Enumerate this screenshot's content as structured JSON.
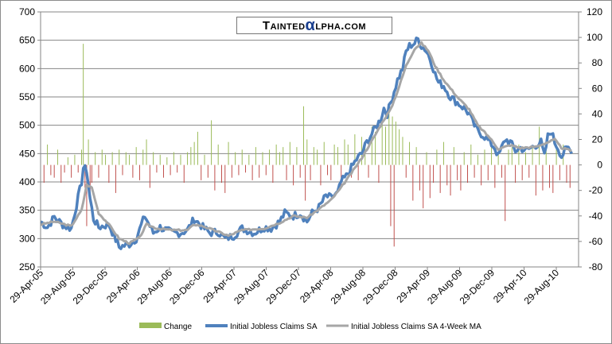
{
  "logo": {
    "before": "Tainted",
    "alpha": "α",
    "after": "lpha.com"
  },
  "chart_data": {
    "type": "line",
    "title": "",
    "xlabel": "",
    "ylabel": "",
    "ylim": [
      250,
      700
    ],
    "ylim_right": [
      -80,
      120
    ],
    "left_ticks": [
      "700",
      "650",
      "600",
      "550",
      "500",
      "450",
      "400",
      "350",
      "300",
      "250"
    ],
    "right_ticks": [
      "120",
      "100",
      "80",
      "60",
      "40",
      "20",
      "0",
      "-20",
      "-40",
      "-60",
      "-80"
    ],
    "x_tick_labels": [
      "29-Apr-05",
      "29-Aug-05",
      "29-Dec-05",
      "29-Apr-06",
      "29-Aug-06",
      "29-Dec-06",
      "29-Apr-07",
      "29-Aug-07",
      "29-Dec-07",
      "29-Apr-08",
      "29-Aug-08",
      "29-Dec-08",
      "29-Apr-09",
      "29-Aug-09",
      "29-Dec-09",
      "29-Apr-10",
      "29-Aug-10"
    ],
    "grid": "horizontal",
    "legend_position": "bottom",
    "legend": [
      "Change",
      "Initial Jobless Claims SA",
      "Initial Jobless Claims SA 4-Week MA"
    ],
    "colors": {
      "change_pos": "#9bbb59",
      "change_neg": "#c0504d",
      "claims": "#4f81bd",
      "ma": "#a6a6a6",
      "grid": "#868686"
    },
    "claims_keypoints": [
      {
        "x": 0,
        "y": 330
      },
      {
        "x": 4,
        "y": 320
      },
      {
        "x": 8,
        "y": 338
      },
      {
        "x": 14,
        "y": 322
      },
      {
        "x": 18,
        "y": 318
      },
      {
        "x": 24,
        "y": 400
      },
      {
        "x": 25,
        "y": 425
      },
      {
        "x": 27,
        "y": 420
      },
      {
        "x": 29,
        "y": 370
      },
      {
        "x": 31,
        "y": 335
      },
      {
        "x": 34,
        "y": 320
      },
      {
        "x": 40,
        "y": 325
      },
      {
        "x": 43,
        "y": 305
      },
      {
        "x": 46,
        "y": 285
      },
      {
        "x": 52,
        "y": 290
      },
      {
        "x": 56,
        "y": 300
      },
      {
        "x": 61,
        "y": 340
      },
      {
        "x": 66,
        "y": 310
      },
      {
        "x": 70,
        "y": 320
      },
      {
        "x": 77,
        "y": 310
      },
      {
        "x": 82,
        "y": 310
      },
      {
        "x": 86,
        "y": 315
      },
      {
        "x": 90,
        "y": 335
      },
      {
        "x": 95,
        "y": 320
      },
      {
        "x": 99,
        "y": 310
      },
      {
        "x": 104,
        "y": 312
      },
      {
        "x": 108,
        "y": 300
      },
      {
        "x": 113,
        "y": 305
      },
      {
        "x": 118,
        "y": 318
      },
      {
        "x": 125,
        "y": 310
      },
      {
        "x": 131,
        "y": 320
      },
      {
        "x": 135,
        "y": 318
      },
      {
        "x": 140,
        "y": 330
      },
      {
        "x": 143,
        "y": 345
      },
      {
        "x": 148,
        "y": 340
      },
      {
        "x": 152,
        "y": 345
      },
      {
        "x": 156,
        "y": 330
      },
      {
        "x": 159,
        "y": 345
      },
      {
        "x": 163,
        "y": 355
      },
      {
        "x": 167,
        "y": 375
      },
      {
        "x": 170,
        "y": 372
      },
      {
        "x": 174,
        "y": 380
      },
      {
        "x": 176,
        "y": 400
      },
      {
        "x": 179,
        "y": 410
      },
      {
        "x": 183,
        "y": 430
      },
      {
        "x": 185,
        "y": 440
      },
      {
        "x": 188,
        "y": 450
      },
      {
        "x": 191,
        "y": 470
      },
      {
        "x": 195,
        "y": 490
      },
      {
        "x": 199,
        "y": 510
      },
      {
        "x": 201,
        "y": 530
      },
      {
        "x": 203,
        "y": 520
      },
      {
        "x": 205,
        "y": 540
      },
      {
        "x": 207,
        "y": 560
      },
      {
        "x": 209,
        "y": 580
      },
      {
        "x": 212,
        "y": 600
      },
      {
        "x": 214,
        "y": 630
      },
      {
        "x": 216,
        "y": 640
      },
      {
        "x": 219,
        "y": 645
      },
      {
        "x": 221,
        "y": 652
      },
      {
        "x": 223,
        "y": 640
      },
      {
        "x": 225,
        "y": 635
      },
      {
        "x": 227,
        "y": 625
      },
      {
        "x": 229,
        "y": 610
      },
      {
        "x": 231,
        "y": 590
      },
      {
        "x": 233,
        "y": 575
      },
      {
        "x": 236,
        "y": 570
      },
      {
        "x": 240,
        "y": 550
      },
      {
        "x": 244,
        "y": 540
      },
      {
        "x": 248,
        "y": 530
      },
      {
        "x": 251,
        "y": 520
      },
      {
        "x": 253,
        "y": 505
      },
      {
        "x": 256,
        "y": 490
      },
      {
        "x": 260,
        "y": 480
      },
      {
        "x": 263,
        "y": 470
      },
      {
        "x": 266,
        "y": 460
      },
      {
        "x": 268,
        "y": 445
      },
      {
        "x": 270,
        "y": 460
      },
      {
        "x": 272,
        "y": 475
      },
      {
        "x": 275,
        "y": 470
      },
      {
        "x": 278,
        "y": 455
      },
      {
        "x": 281,
        "y": 460
      },
      {
        "x": 284,
        "y": 455
      },
      {
        "x": 287,
        "y": 460
      },
      {
        "x": 290,
        "y": 465
      },
      {
        "x": 293,
        "y": 470
      },
      {
        "x": 295,
        "y": 445
      },
      {
        "x": 297,
        "y": 480
      },
      {
        "x": 299,
        "y": 490
      },
      {
        "x": 301,
        "y": 470
      },
      {
        "x": 303,
        "y": 460
      },
      {
        "x": 305,
        "y": 445
      },
      {
        "x": 307,
        "y": 455
      },
      {
        "x": 309,
        "y": 460
      },
      {
        "x": 311,
        "y": 450
      }
    ],
    "ma_keypoints": [
      {
        "x": 0,
        "y": 325
      },
      {
        "x": 8,
        "y": 330
      },
      {
        "x": 18,
        "y": 322
      },
      {
        "x": 24,
        "y": 350
      },
      {
        "x": 27,
        "y": 395
      },
      {
        "x": 30,
        "y": 390
      },
      {
        "x": 34,
        "y": 345
      },
      {
        "x": 40,
        "y": 325
      },
      {
        "x": 46,
        "y": 300
      },
      {
        "x": 52,
        "y": 292
      },
      {
        "x": 58,
        "y": 302
      },
      {
        "x": 62,
        "y": 325
      },
      {
        "x": 68,
        "y": 318
      },
      {
        "x": 77,
        "y": 315
      },
      {
        "x": 86,
        "y": 315
      },
      {
        "x": 90,
        "y": 325
      },
      {
        "x": 95,
        "y": 322
      },
      {
        "x": 104,
        "y": 312
      },
      {
        "x": 110,
        "y": 305
      },
      {
        "x": 118,
        "y": 315
      },
      {
        "x": 131,
        "y": 318
      },
      {
        "x": 140,
        "y": 328
      },
      {
        "x": 148,
        "y": 340
      },
      {
        "x": 156,
        "y": 337
      },
      {
        "x": 163,
        "y": 352
      },
      {
        "x": 170,
        "y": 368
      },
      {
        "x": 176,
        "y": 390
      },
      {
        "x": 183,
        "y": 420
      },
      {
        "x": 188,
        "y": 442
      },
      {
        "x": 195,
        "y": 478
      },
      {
        "x": 201,
        "y": 510
      },
      {
        "x": 205,
        "y": 528
      },
      {
        "x": 209,
        "y": 560
      },
      {
        "x": 214,
        "y": 605
      },
      {
        "x": 219,
        "y": 635
      },
      {
        "x": 223,
        "y": 645
      },
      {
        "x": 227,
        "y": 632
      },
      {
        "x": 231,
        "y": 605
      },
      {
        "x": 236,
        "y": 580
      },
      {
        "x": 244,
        "y": 550
      },
      {
        "x": 251,
        "y": 528
      },
      {
        "x": 256,
        "y": 500
      },
      {
        "x": 263,
        "y": 478
      },
      {
        "x": 268,
        "y": 458
      },
      {
        "x": 275,
        "y": 465
      },
      {
        "x": 281,
        "y": 460
      },
      {
        "x": 290,
        "y": 462
      },
      {
        "x": 297,
        "y": 470
      },
      {
        "x": 301,
        "y": 475
      },
      {
        "x": 305,
        "y": 460
      },
      {
        "x": 311,
        "y": 455
      }
    ],
    "change_bars": [
      {
        "x": 0,
        "y": -12
      },
      {
        "x": 2,
        "y": -14
      },
      {
        "x": 4,
        "y": 16
      },
      {
        "x": 6,
        "y": -8
      },
      {
        "x": 8,
        "y": -10
      },
      {
        "x": 10,
        "y": 12
      },
      {
        "x": 12,
        "y": -14
      },
      {
        "x": 14,
        "y": -6
      },
      {
        "x": 16,
        "y": 6
      },
      {
        "x": 18,
        "y": -10
      },
      {
        "x": 20,
        "y": 8
      },
      {
        "x": 22,
        "y": -6
      },
      {
        "x": 24,
        "y": 12
      },
      {
        "x": 25,
        "y": 95
      },
      {
        "x": 26,
        "y": -18
      },
      {
        "x": 27,
        "y": -48
      },
      {
        "x": 28,
        "y": 20
      },
      {
        "x": 29,
        "y": -28
      },
      {
        "x": 30,
        "y": -14
      },
      {
        "x": 32,
        "y": 10
      },
      {
        "x": 34,
        "y": -10
      },
      {
        "x": 36,
        "y": 12
      },
      {
        "x": 38,
        "y": 8
      },
      {
        "x": 40,
        "y": -14
      },
      {
        "x": 42,
        "y": 10
      },
      {
        "x": 44,
        "y": -22
      },
      {
        "x": 46,
        "y": 12
      },
      {
        "x": 48,
        "y": -8
      },
      {
        "x": 50,
        "y": 10
      },
      {
        "x": 52,
        "y": 8
      },
      {
        "x": 54,
        "y": -10
      },
      {
        "x": 56,
        "y": 14
      },
      {
        "x": 58,
        "y": -12
      },
      {
        "x": 60,
        "y": 12
      },
      {
        "x": 62,
        "y": 20
      },
      {
        "x": 64,
        "y": -18
      },
      {
        "x": 66,
        "y": 10
      },
      {
        "x": 68,
        "y": -6
      },
      {
        "x": 70,
        "y": 8
      },
      {
        "x": 72,
        "y": -10
      },
      {
        "x": 74,
        "y": 6
      },
      {
        "x": 76,
        "y": -8
      },
      {
        "x": 78,
        "y": 10
      },
      {
        "x": 80,
        "y": -6
      },
      {
        "x": 82,
        "y": 8
      },
      {
        "x": 84,
        "y": -14
      },
      {
        "x": 86,
        "y": 10
      },
      {
        "x": 88,
        "y": 14
      },
      {
        "x": 90,
        "y": 18
      },
      {
        "x": 92,
        "y": 26
      },
      {
        "x": 94,
        "y": -12
      },
      {
        "x": 96,
        "y": 8
      },
      {
        "x": 98,
        "y": -10
      },
      {
        "x": 100,
        "y": 35
      },
      {
        "x": 102,
        "y": -20
      },
      {
        "x": 104,
        "y": 16
      },
      {
        "x": 106,
        "y": -14
      },
      {
        "x": 108,
        "y": -22
      },
      {
        "x": 110,
        "y": 18
      },
      {
        "x": 112,
        "y": -10
      },
      {
        "x": 114,
        "y": 10
      },
      {
        "x": 116,
        "y": -8
      },
      {
        "x": 118,
        "y": 12
      },
      {
        "x": 120,
        "y": -6
      },
      {
        "x": 122,
        "y": 8
      },
      {
        "x": 124,
        "y": -12
      },
      {
        "x": 126,
        "y": 14
      },
      {
        "x": 128,
        "y": -10
      },
      {
        "x": 130,
        "y": 10
      },
      {
        "x": 132,
        "y": -8
      },
      {
        "x": 134,
        "y": 12
      },
      {
        "x": 136,
        "y": -14
      },
      {
        "x": 138,
        "y": 16
      },
      {
        "x": 140,
        "y": 10
      },
      {
        "x": 142,
        "y": 14
      },
      {
        "x": 144,
        "y": -12
      },
      {
        "x": 146,
        "y": 18
      },
      {
        "x": 148,
        "y": -16
      },
      {
        "x": 150,
        "y": 14
      },
      {
        "x": 152,
        "y": -10
      },
      {
        "x": 154,
        "y": 46
      },
      {
        "x": 155,
        "y": -28
      },
      {
        "x": 156,
        "y": 20
      },
      {
        "x": 158,
        "y": -12
      },
      {
        "x": 160,
        "y": 14
      },
      {
        "x": 162,
        "y": 12
      },
      {
        "x": 164,
        "y": -16
      },
      {
        "x": 166,
        "y": 18
      },
      {
        "x": 168,
        "y": -8
      },
      {
        "x": 170,
        "y": -12
      },
      {
        "x": 172,
        "y": 16
      },
      {
        "x": 174,
        "y": 14
      },
      {
        "x": 176,
        "y": -18
      },
      {
        "x": 178,
        "y": 20
      },
      {
        "x": 180,
        "y": 16
      },
      {
        "x": 182,
        "y": -10
      },
      {
        "x": 184,
        "y": 24
      },
      {
        "x": 186,
        "y": -12
      },
      {
        "x": 188,
        "y": 22
      },
      {
        "x": 190,
        "y": 18
      },
      {
        "x": 192,
        "y": -10
      },
      {
        "x": 194,
        "y": 30
      },
      {
        "x": 196,
        "y": 26
      },
      {
        "x": 198,
        "y": -14
      },
      {
        "x": 200,
        "y": 34
      },
      {
        "x": 202,
        "y": 30
      },
      {
        "x": 204,
        "y": 45
      },
      {
        "x": 205,
        "y": -48
      },
      {
        "x": 206,
        "y": 38
      },
      {
        "x": 207,
        "y": -64
      },
      {
        "x": 208,
        "y": 34
      },
      {
        "x": 210,
        "y": 28
      },
      {
        "x": 212,
        "y": 22
      },
      {
        "x": 214,
        "y": -10
      },
      {
        "x": 216,
        "y": 18
      },
      {
        "x": 218,
        "y": -28
      },
      {
        "x": 220,
        "y": 14
      },
      {
        "x": 222,
        "y": -20
      },
      {
        "x": 224,
        "y": -34
      },
      {
        "x": 226,
        "y": 10
      },
      {
        "x": 228,
        "y": -26
      },
      {
        "x": 230,
        "y": -14
      },
      {
        "x": 232,
        "y": 12
      },
      {
        "x": 234,
        "y": -22
      },
      {
        "x": 236,
        "y": 18
      },
      {
        "x": 238,
        "y": -16
      },
      {
        "x": 240,
        "y": -24
      },
      {
        "x": 242,
        "y": 14
      },
      {
        "x": 244,
        "y": -12
      },
      {
        "x": 246,
        "y": -20
      },
      {
        "x": 248,
        "y": 10
      },
      {
        "x": 250,
        "y": -14
      },
      {
        "x": 252,
        "y": 16
      },
      {
        "x": 254,
        "y": -10
      },
      {
        "x": 256,
        "y": 8
      },
      {
        "x": 258,
        "y": -16
      },
      {
        "x": 260,
        "y": 12
      },
      {
        "x": 262,
        "y": -12
      },
      {
        "x": 264,
        "y": 14
      },
      {
        "x": 266,
        "y": -18
      },
      {
        "x": 268,
        "y": 8
      },
      {
        "x": 270,
        "y": -10
      },
      {
        "x": 272,
        "y": -44
      },
      {
        "x": 274,
        "y": 12
      },
      {
        "x": 276,
        "y": 14
      },
      {
        "x": 278,
        "y": -14
      },
      {
        "x": 280,
        "y": 16
      },
      {
        "x": 282,
        "y": -12
      },
      {
        "x": 284,
        "y": 10
      },
      {
        "x": 286,
        "y": -10
      },
      {
        "x": 288,
        "y": 14
      },
      {
        "x": 290,
        "y": -24
      },
      {
        "x": 292,
        "y": 30
      },
      {
        "x": 294,
        "y": -20
      },
      {
        "x": 296,
        "y": 20
      },
      {
        "x": 298,
        "y": -18
      },
      {
        "x": 300,
        "y": -22
      },
      {
        "x": 302,
        "y": 14
      },
      {
        "x": 304,
        "y": -12
      },
      {
        "x": 306,
        "y": 16
      },
      {
        "x": 308,
        "y": -14
      },
      {
        "x": 310,
        "y": -18
      }
    ]
  }
}
